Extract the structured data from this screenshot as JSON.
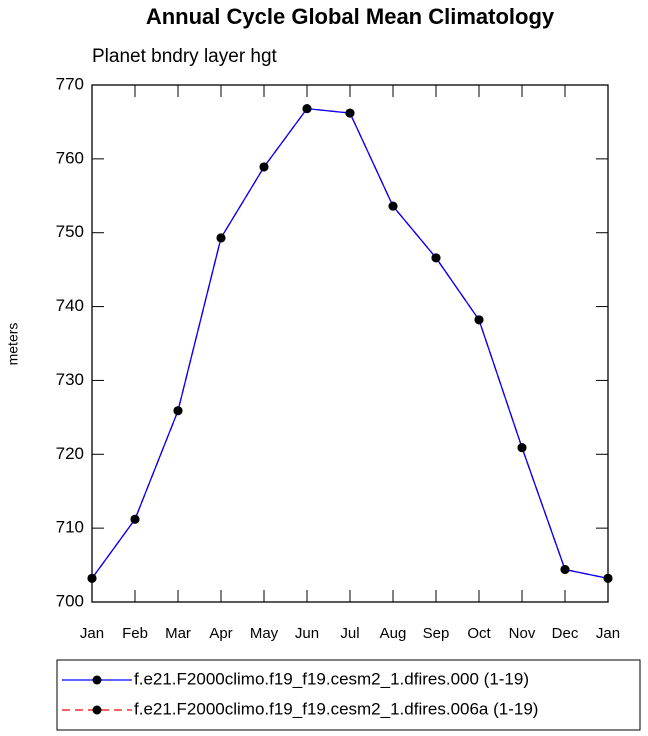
{
  "chart_data": {
    "type": "line",
    "title": "Annual Cycle Global Mean Climatology",
    "subtitle": "Planet bndry layer hgt",
    "y_label": "meters",
    "categories": [
      "Jan",
      "Feb",
      "Mar",
      "Apr",
      "May",
      "Jun",
      "Jul",
      "Aug",
      "Sep",
      "Oct",
      "Nov",
      "Dec",
      "Jan"
    ],
    "series": [
      {
        "name": "f.e21.F2000climo.f19_f19.cesm2_1.dfires.000 (1-19)",
        "color": "#0000ff",
        "dash": false,
        "values": [
          703.2,
          711.2,
          725.9,
          749.3,
          758.9,
          766.8,
          766.2,
          753.6,
          746.6,
          738.2,
          720.9,
          704.4,
          703.2
        ]
      },
      {
        "name": "f.e21.F2000climo.f19_f19.cesm2_1.dfires.006a (1-19)",
        "color": "#ff0000",
        "dash": true,
        "values": [
          703.2,
          711.2,
          725.9,
          749.3,
          758.9,
          766.8,
          766.2,
          753.6,
          746.6,
          738.2,
          720.9,
          704.4,
          703.2
        ]
      }
    ],
    "ylim": [
      700,
      770
    ],
    "yticks": [
      700,
      710,
      720,
      730,
      740,
      750,
      760,
      770
    ]
  }
}
